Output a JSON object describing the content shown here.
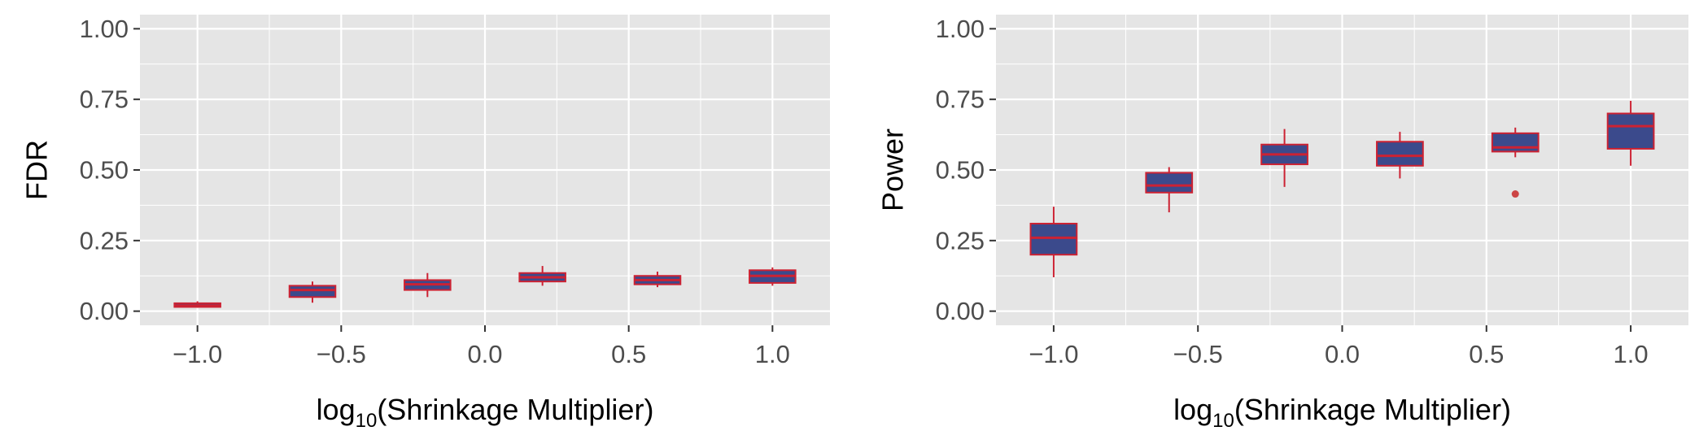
{
  "chart_data": [
    {
      "type": "box",
      "title": "",
      "xlabel_parts": [
        "log",
        "10",
        "(Shrinkage Multiplier)"
      ],
      "ylabel": "FDR",
      "xlim": [
        -1.2,
        1.2
      ],
      "ylim": [
        -0.05,
        1.05
      ],
      "xticks": [
        -1.0,
        -0.5,
        0.0,
        0.5,
        1.0
      ],
      "xtick_labels": [
        "−1.0",
        "−0.5",
        "0.0",
        "0.5",
        "1.0"
      ],
      "yticks": [
        0.0,
        0.25,
        0.5,
        0.75,
        1.0
      ],
      "ytick_labels": [
        "0.00",
        "0.25",
        "0.50",
        "0.75",
        "1.00"
      ],
      "grid": true,
      "colors": {
        "panel": "#e5e5e5",
        "box_fill": "#3b4a8c",
        "box_line": "#cc2233",
        "grid": "#ffffff"
      },
      "boxes": [
        {
          "x": -1.0,
          "q1": 0.015,
          "median": 0.02,
          "q3": 0.028,
          "whisker_low": 0.012,
          "whisker_high": 0.035,
          "outliers": []
        },
        {
          "x": -0.6,
          "q1": 0.05,
          "median": 0.075,
          "q3": 0.09,
          "whisker_low": 0.03,
          "whisker_high": 0.105,
          "outliers": []
        },
        {
          "x": -0.2,
          "q1": 0.075,
          "median": 0.095,
          "q3": 0.11,
          "whisker_low": 0.05,
          "whisker_high": 0.135,
          "outliers": []
        },
        {
          "x": 0.2,
          "q1": 0.105,
          "median": 0.12,
          "q3": 0.135,
          "whisker_low": 0.09,
          "whisker_high": 0.16,
          "outliers": []
        },
        {
          "x": 0.6,
          "q1": 0.095,
          "median": 0.11,
          "q3": 0.125,
          "whisker_low": 0.085,
          "whisker_high": 0.14,
          "outliers": []
        },
        {
          "x": 1.0,
          "q1": 0.1,
          "median": 0.125,
          "q3": 0.145,
          "whisker_low": 0.09,
          "whisker_high": 0.155,
          "outliers": []
        }
      ]
    },
    {
      "type": "box",
      "title": "",
      "xlabel_parts": [
        "log",
        "10",
        "(Shrinkage Multiplier)"
      ],
      "ylabel": "Power",
      "xlim": [
        -1.2,
        1.2
      ],
      "ylim": [
        -0.05,
        1.05
      ],
      "xticks": [
        -1.0,
        -0.5,
        0.0,
        0.5,
        1.0
      ],
      "xtick_labels": [
        "−1.0",
        "−0.5",
        "0.0",
        "0.5",
        "1.0"
      ],
      "yticks": [
        0.0,
        0.25,
        0.5,
        0.75,
        1.0
      ],
      "ytick_labels": [
        "0.00",
        "0.25",
        "0.50",
        "0.75",
        "1.00"
      ],
      "grid": true,
      "colors": {
        "panel": "#e5e5e5",
        "box_fill": "#3b4a8c",
        "box_line": "#cc2233",
        "grid": "#ffffff"
      },
      "boxes": [
        {
          "x": -1.0,
          "q1": 0.2,
          "median": 0.26,
          "q3": 0.31,
          "whisker_low": 0.12,
          "whisker_high": 0.37,
          "outliers": []
        },
        {
          "x": -0.6,
          "q1": 0.42,
          "median": 0.445,
          "q3": 0.49,
          "whisker_low": 0.35,
          "whisker_high": 0.51,
          "outliers": []
        },
        {
          "x": -0.2,
          "q1": 0.52,
          "median": 0.555,
          "q3": 0.59,
          "whisker_low": 0.44,
          "whisker_high": 0.645,
          "outliers": []
        },
        {
          "x": 0.2,
          "q1": 0.515,
          "median": 0.55,
          "q3": 0.6,
          "whisker_low": 0.47,
          "whisker_high": 0.635,
          "outliers": []
        },
        {
          "x": 0.6,
          "q1": 0.565,
          "median": 0.58,
          "q3": 0.63,
          "whisker_low": 0.545,
          "whisker_high": 0.65,
          "outliers": [
            0.415
          ]
        },
        {
          "x": 1.0,
          "q1": 0.575,
          "median": 0.655,
          "q3": 0.7,
          "whisker_low": 0.515,
          "whisker_high": 0.745,
          "outliers": []
        }
      ]
    }
  ]
}
